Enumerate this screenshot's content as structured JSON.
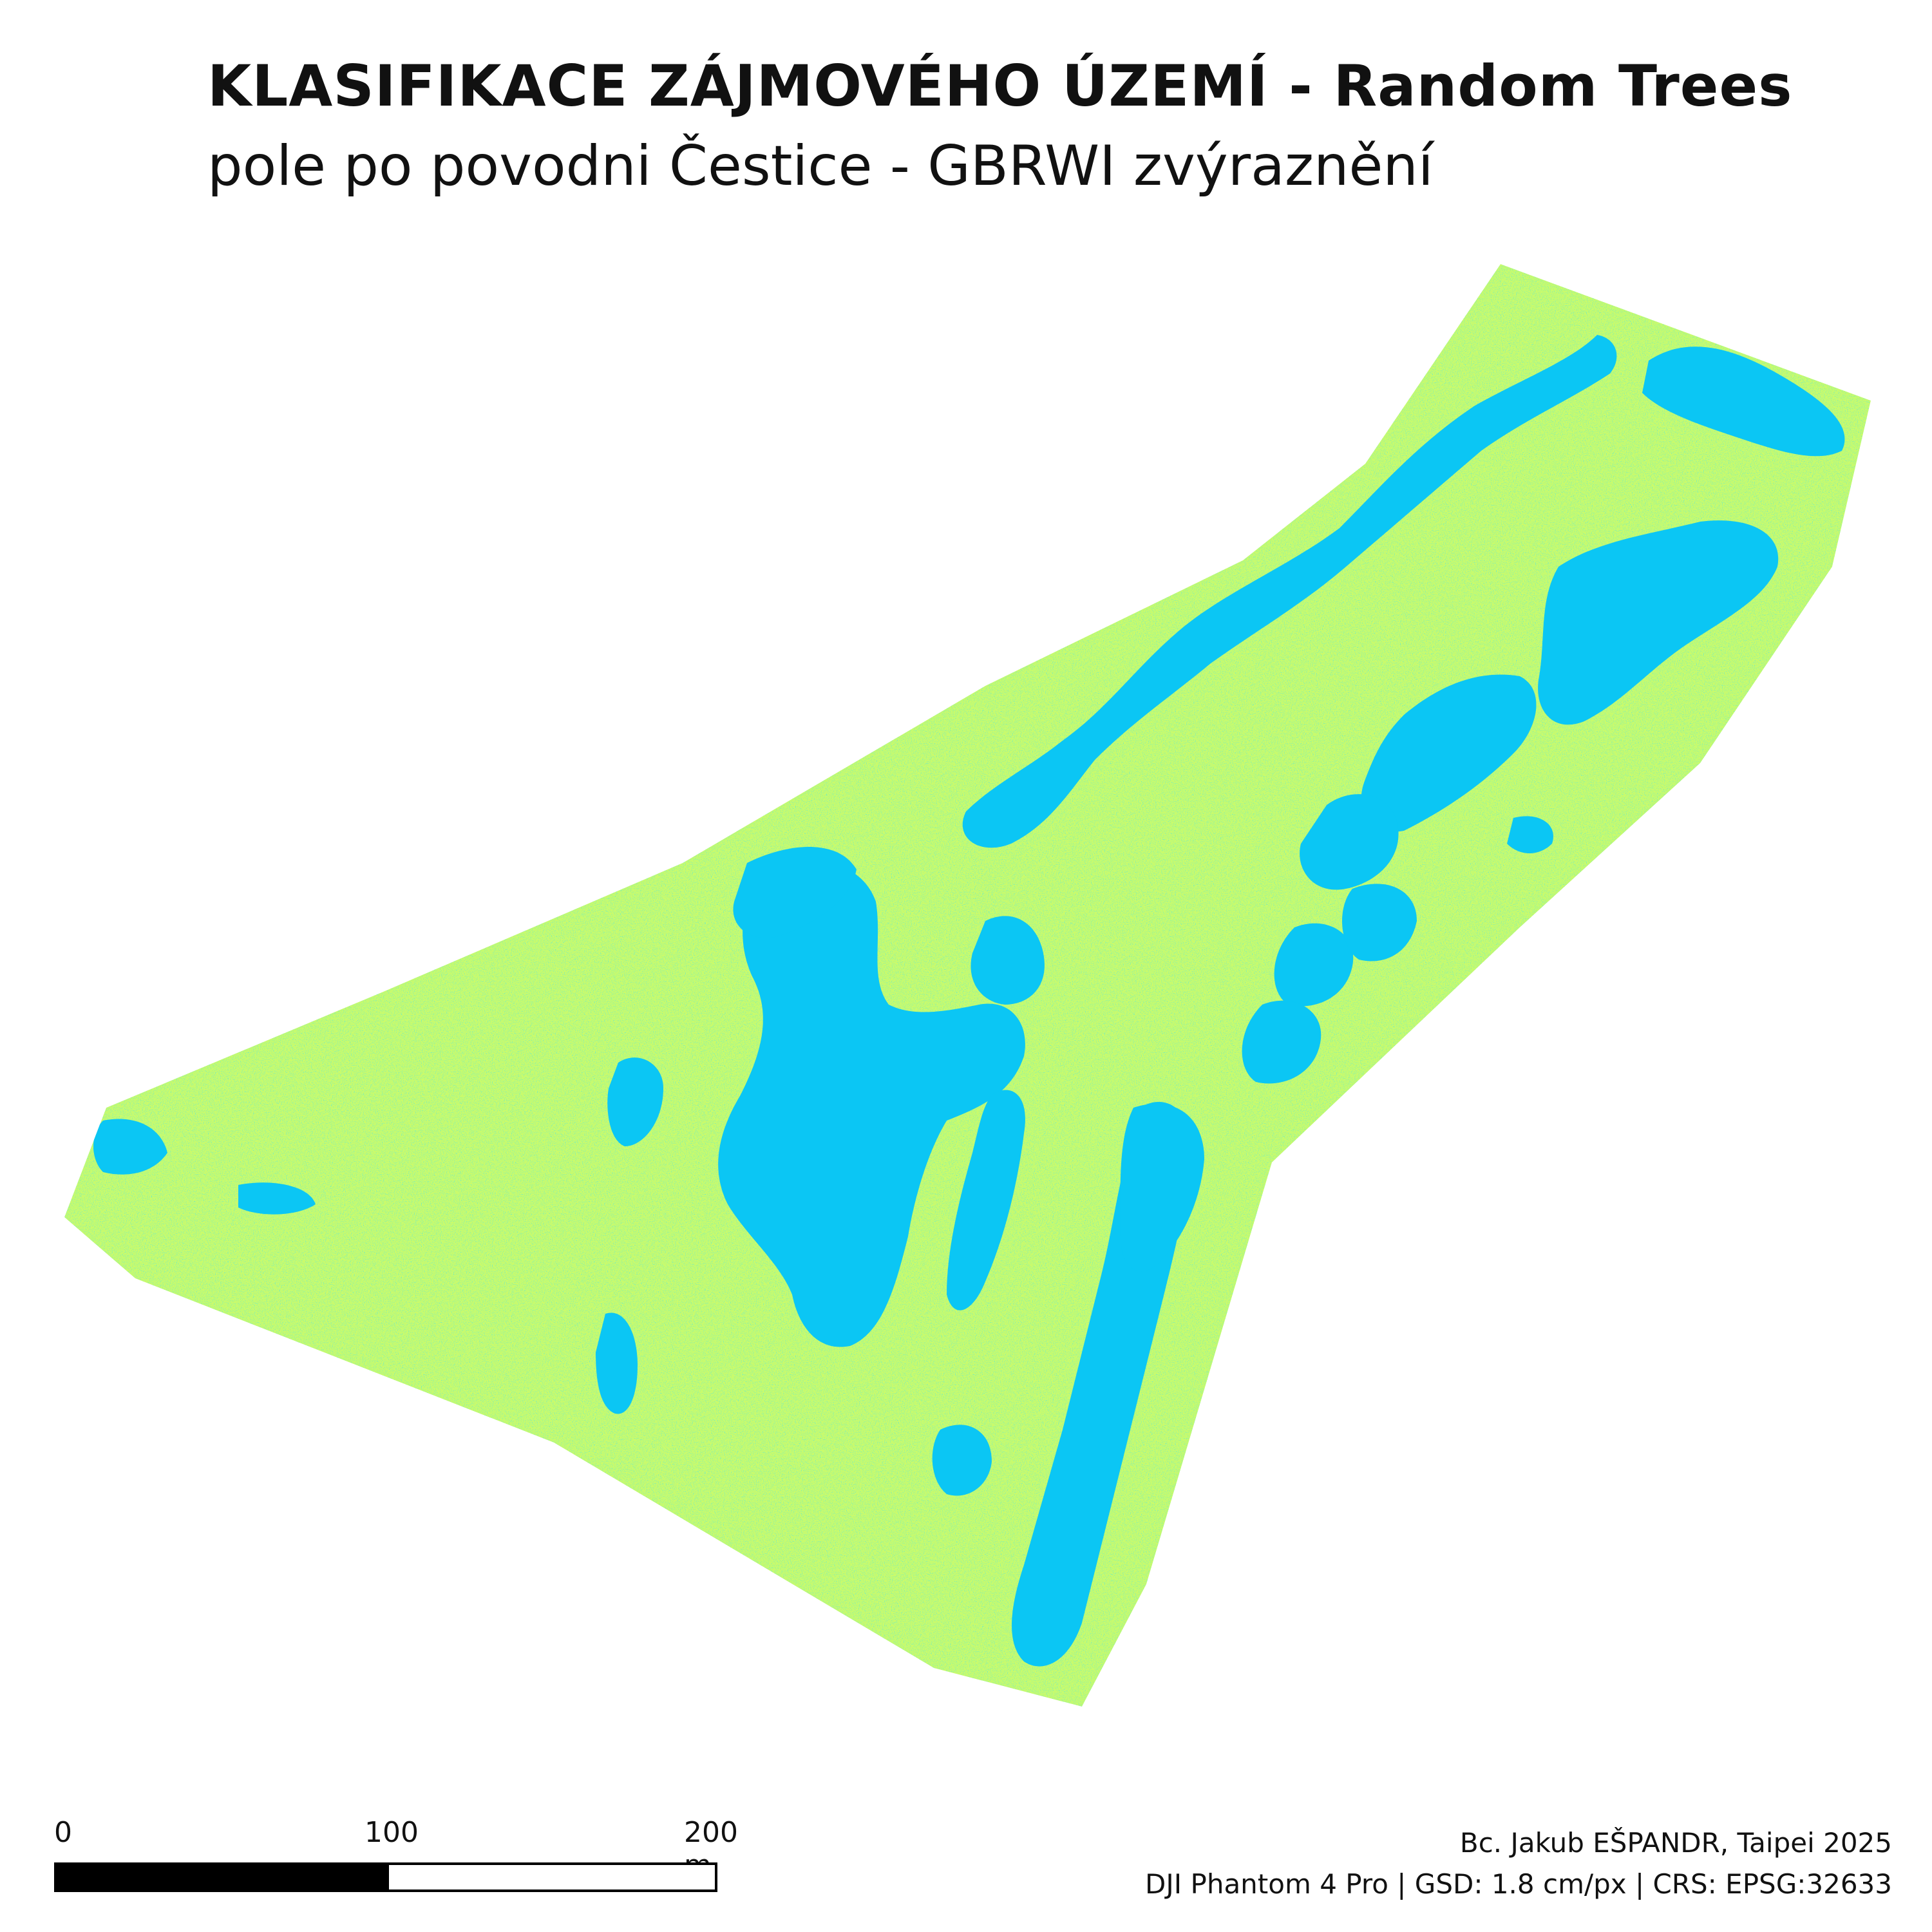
{
  "map": {
    "title": "KLASIFIKACE ZÁJMOVÉHO ÚZEMÍ - Random Trees",
    "subtitle": "pole po povodni Čestice - GBRWI zvýraznění",
    "classes": {
      "land_color": "#c9fb6c",
      "water_color": "#0bc6f4"
    }
  },
  "scalebar": {
    "labels": [
      "0",
      "100",
      "200 m"
    ]
  },
  "credits": {
    "author": "Bc. Jakub EŠPANDR, Taipei 2025",
    "details": "DJI Phantom 4 Pro | GSD: 1.8 cm/px | CRS: EPSG:32633"
  }
}
